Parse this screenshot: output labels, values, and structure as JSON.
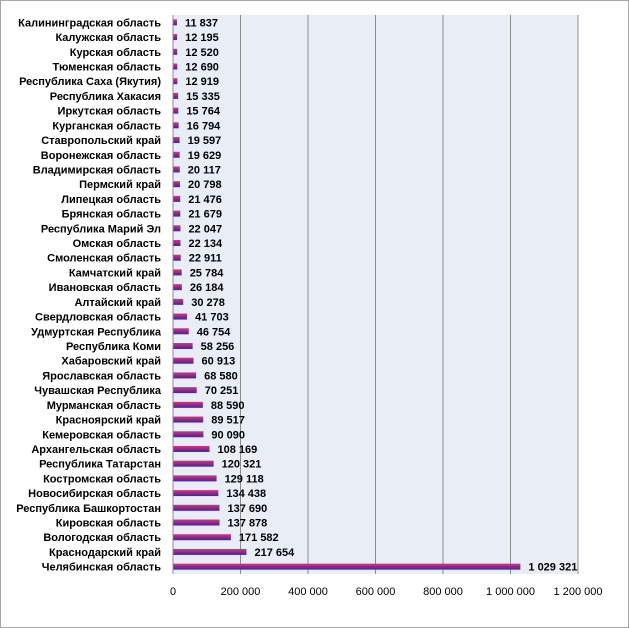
{
  "chart_data": {
    "type": "bar",
    "orientation": "horizontal",
    "categories": [
      "Калининградская область",
      "Калужская область",
      "Курская область",
      "Тюменская область",
      "Республика Саха (Якутия)",
      "Республика Хакасия",
      "Иркутская область",
      "Курганская область",
      "Ставропольский край",
      "Воронежская область",
      "Владимирская область",
      "Пермский край",
      "Липецкая область",
      "Брянская область",
      "Республика Марий Эл",
      "Омская область",
      "Смоленская область",
      "Камчатский край",
      "Ивановская область",
      "Алтайский край",
      "Свердловская область",
      "Удмуртская Республика",
      "Республика Коми",
      "Хабаровский край",
      "Ярославская область",
      "Чувашская Республика",
      "Мурманская область",
      "Красноярский край",
      "Кемеровская область",
      "Архангельская область",
      "Республика Татарстан",
      "Костромская область",
      "Новосибирская область",
      "Республика Башкортостан",
      "Кировская область",
      "Вологодская область",
      "Краснодарский край",
      "Челябинская область"
    ],
    "values": [
      11837,
      12195,
      12520,
      12690,
      12919,
      15335,
      15764,
      16794,
      19597,
      19629,
      20117,
      20798,
      21476,
      21679,
      22047,
      22134,
      22911,
      25784,
      26184,
      30278,
      41703,
      46754,
      58256,
      60913,
      68580,
      70251,
      88590,
      89517,
      90090,
      108169,
      120321,
      129118,
      134438,
      137690,
      137878,
      171582,
      217654,
      1029321
    ],
    "value_labels": [
      "11 837",
      "12 195",
      "12 520",
      "12 690",
      "12 919",
      "15 335",
      "15 764",
      "16 794",
      "19 597",
      "19 629",
      "20 117",
      "20 798",
      "21 476",
      "21 679",
      "22 047",
      "22 134",
      "22 911",
      "25 784",
      "26 184",
      "30 278",
      "41 703",
      "46 754",
      "58 256",
      "60 913",
      "68 580",
      "70 251",
      "88 590",
      "89 517",
      "90 090",
      "108 169",
      "120 321",
      "129 118",
      "134 438",
      "137 690",
      "137 878",
      "171 582",
      "217 654",
      "1 029 321"
    ],
    "xlim": [
      0,
      1200000
    ],
    "xticks": [
      0,
      200000,
      400000,
      600000,
      800000,
      1000000,
      1200000
    ],
    "xtick_labels": [
      "0",
      "200 000",
      "400 000",
      "600 000",
      "800 000",
      "1 000 000",
      "1 200 000"
    ],
    "grid": true,
    "legend": "none",
    "colors": {
      "bar_top": "#e0317f",
      "bar_mid": "#8a2c8f",
      "bar_bottom": "#3a2a9a",
      "plot_background": "#e9eef6",
      "grid": "#8c8c8c",
      "border": "#9a9a9a"
    }
  }
}
